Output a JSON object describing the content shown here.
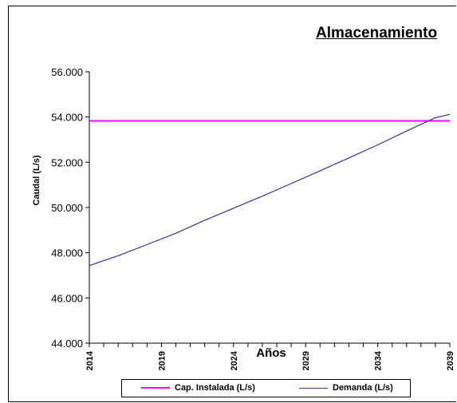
{
  "chart_data": {
    "type": "line",
    "title": "Almacenamiento",
    "xlabel": "Años",
    "ylabel": "Caudal (L/s)",
    "x_ticks": [
      "2014",
      "2019",
      "2024",
      "2029",
      "2034",
      "2039"
    ],
    "xlim": [
      2014,
      2039
    ],
    "y_ticks": [
      "56.000",
      "54.000",
      "52.000",
      "50.000",
      "48.000",
      "46.000",
      "44.000"
    ],
    "ylim": [
      44000,
      56000
    ],
    "grid": false,
    "legend_position": "bottom",
    "series": [
      {
        "name": "Cap. Instalada (L/s)",
        "color": "#ff00ff",
        "x": [
          2014,
          2039
        ],
        "y": [
          53830,
          53830
        ]
      },
      {
        "name": "Demanda (L/s)",
        "color": "#333399",
        "x": [
          2014,
          2016,
          2018,
          2020,
          2022,
          2024,
          2026,
          2028,
          2030,
          2032,
          2034,
          2036,
          2038,
          2039
        ],
        "y": [
          47430,
          47870,
          48360,
          48860,
          49430,
          49970,
          50500,
          51060,
          51620,
          52190,
          52770,
          53380,
          53970,
          54120
        ]
      }
    ]
  }
}
